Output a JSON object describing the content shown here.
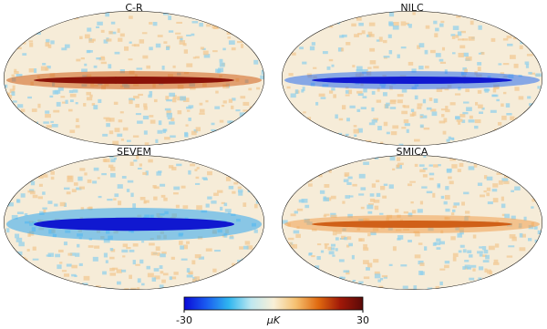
{
  "panels": [
    {
      "title": "C-R"
    },
    {
      "title": "NILC"
    },
    {
      "title": "SEVEM"
    },
    {
      "title": "SMICA"
    }
  ],
  "colorbar": {
    "label": "μK",
    "xlim": [
      -30,
      30
    ],
    "xticks": [
      -30,
      30
    ],
    "colors": [
      "#0a0ad8",
      "#1a5cf0",
      "#2fb6f0",
      "#bfe8f0",
      "#f8f0d8",
      "#f5c070",
      "#e06a10",
      "#a01808",
      "#5a0a08"
    ]
  }
}
